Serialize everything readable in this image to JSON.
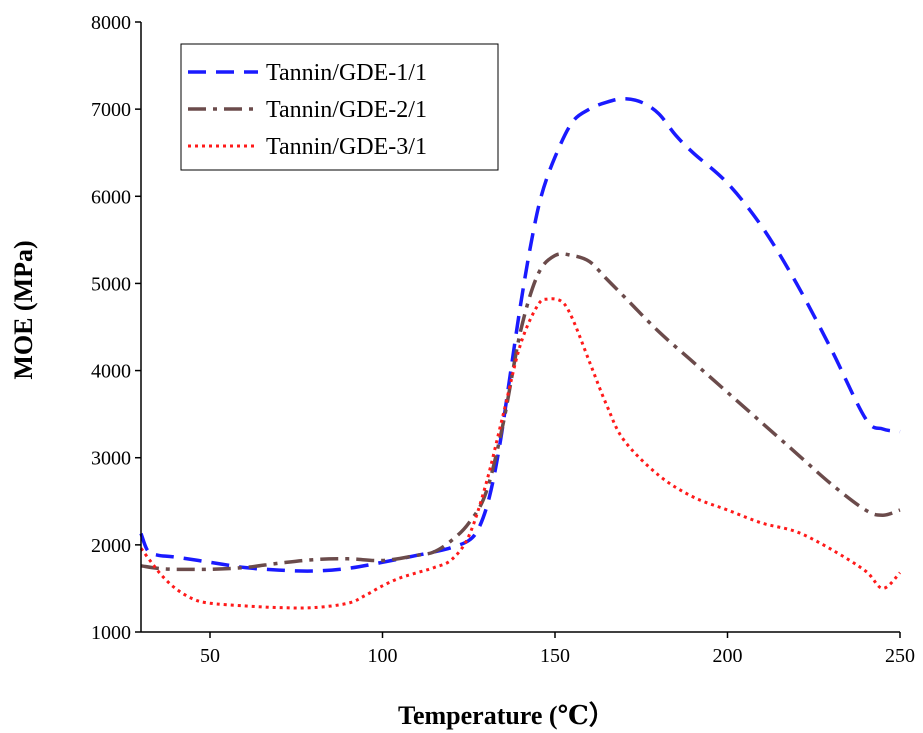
{
  "chart_data": {
    "type": "line",
    "title": "",
    "xlabel": "Temperature (℃）",
    "ylabel": "MOE (MPa)",
    "xlim": [
      30,
      250
    ],
    "ylim": [
      1000,
      8000
    ],
    "xticks": [
      50,
      100,
      150,
      200,
      250
    ],
    "yticks": [
      1000,
      2000,
      3000,
      4000,
      5000,
      6000,
      7000,
      8000
    ],
    "grid": false,
    "legend_position": "top-left",
    "series": [
      {
        "name": "Tannin/GDE-1/1",
        "color": "#1a1aff",
        "dash": "dashed",
        "x": [
          30,
          32,
          35,
          40,
          50,
          60,
          70,
          80,
          90,
          100,
          110,
          115,
          120,
          125,
          128,
          131,
          134,
          137,
          140,
          143,
          146,
          150,
          155,
          160,
          165,
          170,
          175,
          180,
          185,
          190,
          200,
          210,
          220,
          230,
          240,
          245,
          250
        ],
        "y": [
          2130,
          1930,
          1880,
          1860,
          1800,
          1740,
          1710,
          1700,
          1730,
          1800,
          1880,
          1920,
          1970,
          2050,
          2200,
          2550,
          3150,
          3950,
          4750,
          5450,
          6000,
          6450,
          6850,
          7000,
          7080,
          7120,
          7080,
          6950,
          6700,
          6500,
          6150,
          5650,
          5000,
          4250,
          3450,
          3330,
          3300
        ]
      },
      {
        "name": "Tannin/GDE-2/1",
        "color": "#6b4b4b",
        "dash": "dashdot",
        "x": [
          30,
          35,
          40,
          50,
          60,
          70,
          80,
          90,
          100,
          110,
          115,
          120,
          125,
          130,
          135,
          140,
          145,
          150,
          155,
          160,
          165,
          170,
          180,
          190,
          200,
          210,
          220,
          230,
          240,
          245,
          250
        ],
        "y": [
          1760,
          1730,
          1720,
          1720,
          1740,
          1790,
          1830,
          1840,
          1820,
          1880,
          1920,
          2050,
          2250,
          2600,
          3400,
          4450,
          5100,
          5320,
          5320,
          5250,
          5050,
          4850,
          4450,
          4100,
          3750,
          3400,
          3050,
          2700,
          2400,
          2340,
          2400
        ]
      },
      {
        "name": "Tannin/GDE-3/1",
        "color": "#ff1a1a",
        "dash": "dotted",
        "x": [
          30,
          33,
          36,
          40,
          45,
          50,
          60,
          70,
          80,
          90,
          95,
          100,
          105,
          110,
          115,
          120,
          125,
          130,
          135,
          140,
          145,
          148,
          152,
          155,
          160,
          165,
          170,
          180,
          190,
          200,
          210,
          220,
          230,
          240,
          245,
          250
        ],
        "y": [
          1960,
          1800,
          1650,
          1500,
          1380,
          1330,
          1300,
          1280,
          1280,
          1330,
          1420,
          1530,
          1620,
          1680,
          1740,
          1830,
          2100,
          2700,
          3500,
          4300,
          4750,
          4820,
          4790,
          4600,
          4100,
          3600,
          3200,
          2800,
          2550,
          2400,
          2250,
          2150,
          1950,
          1700,
          1500,
          1680
        ]
      }
    ]
  }
}
